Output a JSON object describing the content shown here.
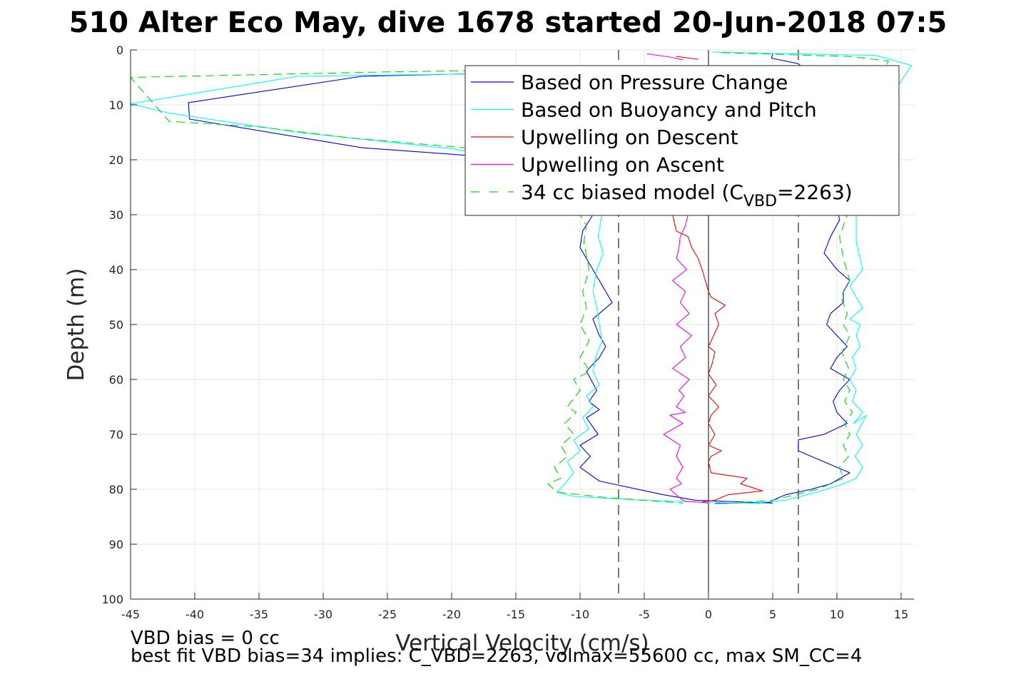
{
  "chart_data": {
    "type": "line",
    "title": "510 Alter Eco May, dive 1678 started 20-Jun-2018 07:5",
    "xlabel": "Vertical Velocity (cm/s)",
    "ylabel": "Depth (m)",
    "xlim": [
      -45,
      16
    ],
    "ylim": [
      0,
      100
    ],
    "y_reversed": true,
    "grid": true,
    "legend_position": "top-right",
    "xticks": [
      "-45",
      "-40",
      "-35",
      "-30",
      "-25",
      "-20",
      "-15",
      "-10",
      "-5",
      "0",
      "5",
      "10",
      "15"
    ],
    "yticks": [
      "0",
      "10",
      "20",
      "30",
      "40",
      "50",
      "60",
      "70",
      "80",
      "90",
      "100"
    ],
    "reference_lines": {
      "zero_line_x": 0,
      "dashed_lines_x": [
        -7,
        7
      ]
    },
    "colors": {
      "pressure": "#0000ff",
      "buoyancy": "#00ffff",
      "upwelling_descent": "#ff0000",
      "upwelling_ascent": "#ff00ff",
      "biased_model": "#00dd00"
    },
    "legend": [
      {
        "key": "pressure",
        "label": "Based on Pressure Change",
        "style": "solid"
      },
      {
        "key": "buoyancy",
        "label": "Based on Buoyancy and Pitch",
        "style": "solid"
      },
      {
        "key": "upwelling_descent",
        "label": "Upwelling on Descent",
        "style": "solid"
      },
      {
        "key": "upwelling_ascent",
        "label": "Upwelling on Ascent",
        "style": "solid"
      },
      {
        "key": "biased_model",
        "label_prefix": "34 cc biased model (C",
        "label_sub": "VBD",
        "label_suffix": "=2263)",
        "style": "dashed"
      }
    ],
    "series": [
      {
        "key": "pressure",
        "segment": "descent",
        "x": [
          -4,
          -27,
          -40.5,
          -40.4,
          -27,
          -17,
          -10,
          -9,
          -9.8,
          -10,
          -9,
          -8,
          -7.5,
          -9,
          -8.5,
          -8,
          -8.5,
          -9.5,
          -8.7,
          -9.3,
          -8.5,
          -9.5,
          -8.6,
          -10,
          -9.2,
          -10,
          -8.5,
          -3.5,
          -1,
          5
        ],
        "y": [
          3.5,
          4.8,
          9.6,
          12.6,
          17.8,
          19.5,
          25,
          30,
          33,
          36,
          40,
          44,
          46,
          49,
          52,
          54,
          56,
          58.5,
          62,
          64,
          65.5,
          67,
          70,
          72,
          74,
          76,
          78.5,
          81,
          82,
          82.5
        ]
      },
      {
        "key": "pressure",
        "segment": "ascent",
        "x": [
          5,
          4.9,
          7,
          8,
          9,
          9.2,
          10.5,
          9.8,
          10,
          10.2,
          9.5,
          9,
          10,
          11,
          10.5,
          10.5,
          9.5,
          9.2,
          10,
          10.8,
          10,
          9.5,
          11,
          10.2,
          9.7,
          10,
          10.8,
          9,
          7,
          7,
          9,
          11,
          9.5,
          8,
          6,
          5,
          4.8,
          0.5
        ],
        "y": [
          0.7,
          1.5,
          2.5,
          5,
          10,
          15,
          20,
          25,
          28,
          31,
          34,
          37,
          40,
          42,
          44,
          46,
          48,
          50,
          52,
          54,
          56,
          58,
          60,
          62,
          64,
          66,
          68,
          70,
          71,
          73,
          75,
          77,
          79,
          80,
          81,
          82,
          82.4,
          82.6
        ]
      },
      {
        "key": "buoyancy",
        "segment": "descent",
        "x": [
          -2,
          -32,
          -45,
          -42,
          -32,
          -20,
          -10,
          -8.5,
          -8.3,
          -8.6,
          -8.2,
          -8.7,
          -9,
          -8.7,
          -8.5,
          -8.3,
          -8.8,
          -9,
          -8.5,
          -9.5,
          -9,
          -9.8,
          -9.3,
          -10.5,
          -10,
          -11,
          -10.5,
          -11.2,
          -11.8,
          -10.5,
          -5,
          0,
          4
        ],
        "y": [
          3.8,
          4.8,
          9.8,
          11.5,
          15,
          18,
          22,
          26,
          30,
          34,
          37,
          40,
          44,
          47,
          50,
          53,
          56,
          58.5,
          61,
          63,
          65,
          67,
          69,
          71,
          73,
          75,
          77,
          79,
          80.5,
          81.3,
          82,
          82.4,
          82.6
        ]
      },
      {
        "key": "buoyancy",
        "segment": "ascent",
        "x": [
          0.3,
          13,
          15.8,
          11,
          12,
          11.5,
          11.5,
          12,
          11,
          11.5,
          12,
          11,
          11.8,
          11.5,
          11.8,
          11.2,
          11.5,
          11,
          11.5,
          11.2,
          12,
          11.3,
          12.3,
          11.5,
          12,
          11.4,
          12,
          11.5,
          10.5,
          8.5,
          6,
          3
        ],
        "y": [
          0.4,
          1,
          2.8,
          20,
          25,
          30,
          35,
          40,
          43,
          45,
          47,
          49,
          50,
          52,
          54,
          56,
          58,
          60,
          62,
          64,
          66,
          68,
          66.5,
          70,
          72,
          74,
          76,
          78,
          79,
          80.5,
          82,
          82.6
        ]
      },
      {
        "key": "upwelling_descent",
        "x": [
          -2.8,
          -2.5,
          -1.6,
          -1.3,
          -0.8,
          -0.5,
          0,
          0.2,
          1.3,
          0.5,
          0.8,
          0.4,
          0,
          0.5,
          0.3,
          0,
          0.6,
          0,
          0.8,
          0.2,
          0,
          0.5,
          0,
          1,
          0.2,
          0,
          0.2,
          3,
          2.5,
          4.2,
          1.5,
          0.5,
          -0.5
        ],
        "y": [
          30,
          33,
          34,
          36,
          38,
          40,
          44,
          45,
          46.5,
          48,
          50,
          52,
          54,
          55,
          57,
          59,
          61,
          63,
          65,
          66.5,
          68,
          70,
          72,
          73,
          74,
          75,
          77,
          78,
          79,
          80.3,
          81,
          82,
          82.3
        ]
      },
      {
        "key": "upwelling_descent",
        "segment": "top",
        "x": [
          -2.5,
          -1.5,
          -0.8
        ],
        "y": [
          1.2,
          1.5,
          1.7
        ]
      },
      {
        "key": "upwelling_ascent",
        "x": [
          -1.6,
          -1.8,
          -2.2,
          -2.3,
          -2.5,
          -1.7,
          -2.8,
          -1.8,
          -2.2,
          -1.5,
          -2.5,
          -1.3,
          -2.2,
          -1.8,
          -2.8,
          -1.5,
          -2.3,
          -1.9,
          -2.5,
          -1.8,
          -3,
          -2,
          -3.5,
          -2.2,
          -2.5,
          -2,
          -2.5,
          -2.1,
          -3,
          -2.5,
          -2,
          -1.8,
          -0.5,
          0
        ],
        "y": [
          30,
          32,
          34,
          36,
          38,
          40,
          42,
          44,
          46,
          48,
          50,
          52,
          54,
          56,
          58,
          60,
          62,
          63,
          65,
          66,
          66.5,
          68,
          70,
          72,
          74,
          76,
          78,
          79,
          80,
          81,
          82,
          82.2,
          82.4,
          82.5
        ]
      },
      {
        "key": "upwelling_ascent",
        "segment": "top",
        "x": [
          -4.8,
          -3,
          -2
        ],
        "y": [
          0.7,
          1.3,
          1.8
        ]
      },
      {
        "key": "biased_model",
        "segment": "descent",
        "x": [
          -10,
          -25,
          -45,
          -42,
          -35,
          -28,
          -18,
          -10,
          -9.5,
          -9.7,
          -9.3,
          -9.8,
          -9.5,
          -10,
          -9.3,
          -10,
          -9.2,
          -10.5,
          -10,
          -11,
          -10.3,
          -11.2,
          -10.5,
          -11.5,
          -11,
          -12,
          -11.5,
          -12.5,
          -11.8,
          -8,
          -2
        ],
        "y": [
          3.5,
          4,
          5,
          13,
          14,
          16,
          18,
          30,
          32,
          35,
          40,
          44,
          47,
          50,
          53,
          56,
          58.5,
          60,
          62,
          65,
          66,
          68,
          70,
          72,
          74,
          76,
          78,
          79,
          80.5,
          81.5,
          82.5
        ]
      },
      {
        "key": "biased_model",
        "segment": "ascent",
        "x": [
          1,
          11,
          14,
          10.5,
          10.8,
          10.2,
          10.5,
          11,
          10.3,
          10.8,
          10.5,
          11,
          10.4,
          10.9,
          10.5,
          11,
          10.6,
          11.2,
          10.6,
          11,
          10.5,
          10.9,
          10.2,
          10.5,
          8.5,
          5,
          2
        ],
        "y": [
          0.5,
          1.2,
          2,
          20,
          30,
          34,
          38,
          42,
          45,
          48,
          50,
          52,
          55,
          58,
          60,
          62,
          64,
          66,
          68,
          70,
          72,
          74,
          76,
          78,
          80,
          82,
          82.5
        ]
      }
    ]
  },
  "footer": {
    "line1": "VBD bias = 0 cc",
    "line2": "best fit VBD bias=34 implies: C_VBD=2263, volmax=55600 cc, max SM_CC=4"
  }
}
